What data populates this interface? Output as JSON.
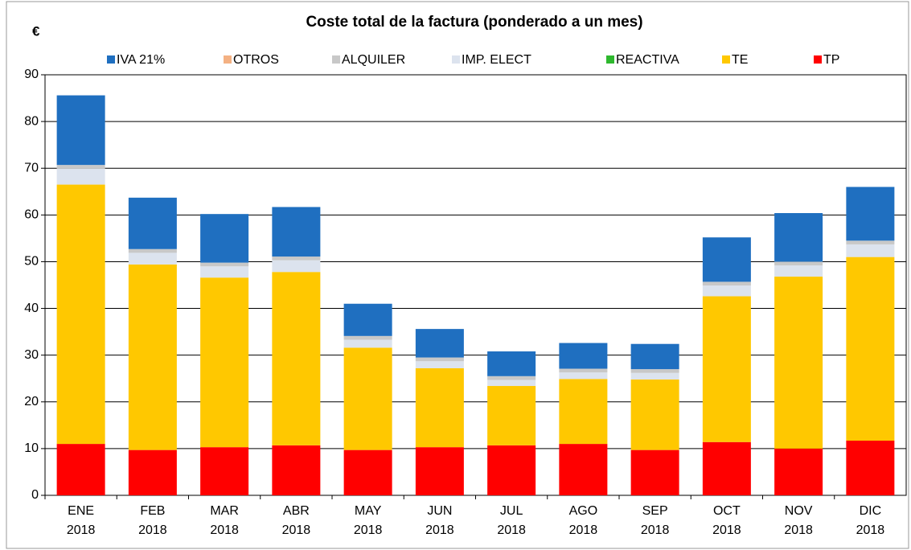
{
  "chart_data": {
    "type": "stacked_bar",
    "title": "Coste total de la factura (ponderado a un mes)",
    "y_label": "€",
    "categories": [
      "ENE 2018",
      "FEB 2018",
      "MAR 2018",
      "ABR 2018",
      "MAY 2018",
      "JUN 2018",
      "JUL 2018",
      "AGO 2018",
      "SEP 2018",
      "OCT 2018",
      "NOV 2018",
      "DIC 2018"
    ],
    "series": [
      {
        "name": "IVA 21%",
        "color": "#1f6fc0",
        "values": [
          14.9,
          11.0,
          10.4,
          10.6,
          6.9,
          6.1,
          5.3,
          5.5,
          5.4,
          9.5,
          10.4,
          11.5
        ]
      },
      {
        "name": "OTROS",
        "color": "#f4b183",
        "values": [
          0,
          0,
          0,
          0,
          0,
          0,
          0,
          0,
          0,
          0,
          0,
          0
        ]
      },
      {
        "name": "ALQUILER",
        "color": "#c8c8c8",
        "values": [
          0.8,
          0.8,
          0.8,
          0.8,
          0.8,
          0.8,
          0.8,
          0.8,
          0.8,
          0.8,
          0.8,
          0.8
        ]
      },
      {
        "name": "IMP. ELECT",
        "color": "#dce3ee",
        "values": [
          3.4,
          2.5,
          2.4,
          2.5,
          1.7,
          1.5,
          1.3,
          1.4,
          1.4,
          2.3,
          2.4,
          2.7
        ]
      },
      {
        "name": "REACTIVA",
        "color": "#2eb82e",
        "values": [
          0,
          0,
          0,
          0,
          0,
          0,
          0,
          0,
          0,
          0,
          0,
          0
        ]
      },
      {
        "name": "TE",
        "color": "#ffc800",
        "values": [
          55.5,
          39.7,
          36.3,
          37.1,
          21.9,
          16.9,
          12.7,
          13.9,
          15.1,
          31.2,
          36.8,
          39.3
        ]
      },
      {
        "name": "TP",
        "color": "#ff0000",
        "values": [
          11.0,
          9.7,
          10.3,
          10.7,
          9.7,
          10.3,
          10.7,
          11.0,
          9.7,
          11.4,
          10.0,
          11.7
        ]
      }
    ],
    "ylim": [
      0,
      90
    ],
    "yticks": [
      0,
      10,
      20,
      30,
      40,
      50,
      60,
      70,
      80,
      90
    ],
    "grid": true,
    "legend": "top"
  }
}
